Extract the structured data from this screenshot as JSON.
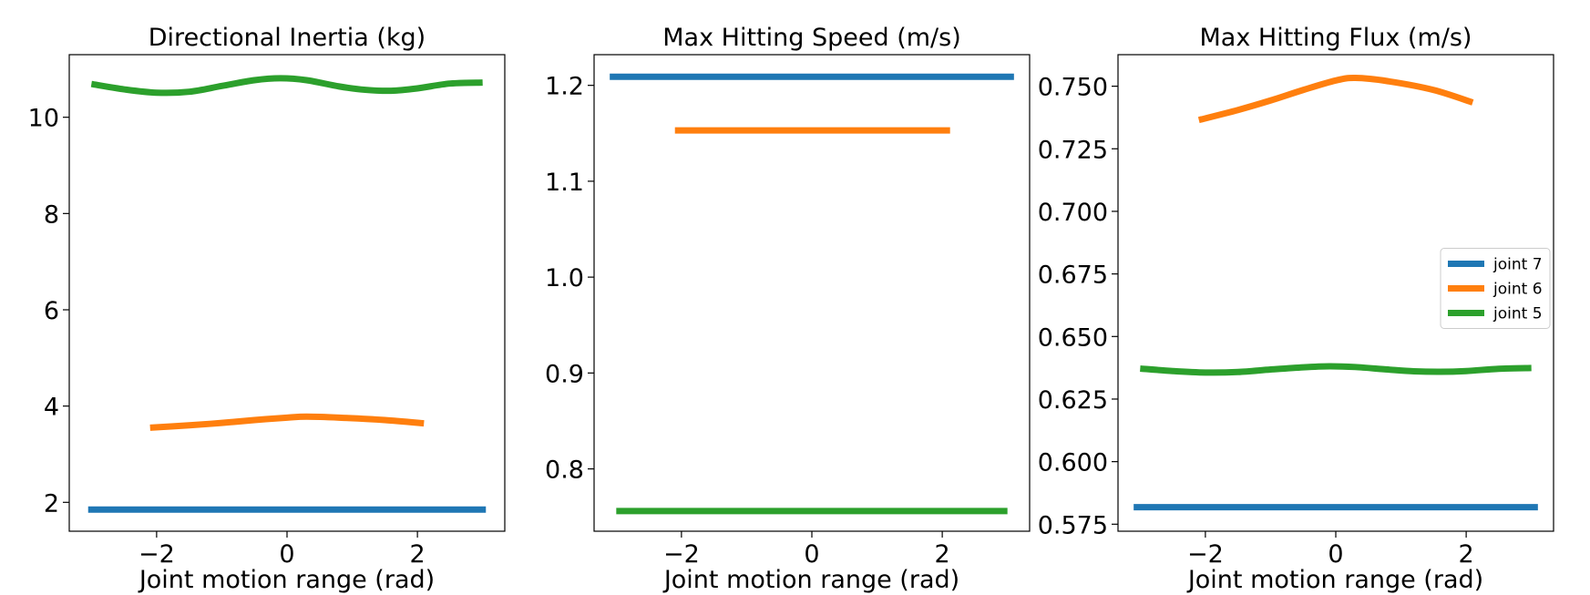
{
  "chart_data": [
    {
      "type": "line",
      "title": "Directional Inertia (kg)",
      "xlabel": "Joint motion range (rad)",
      "ylabel": "",
      "xlim": [
        -3.34,
        3.34
      ],
      "ylim": [
        1.4,
        11.3
      ],
      "xticks": [
        -2,
        0,
        2
      ],
      "xtick_labels": [
        "−2",
        "0",
        "2"
      ],
      "yticks": [
        2,
        4,
        6,
        8,
        10
      ],
      "ytick_labels": [
        "2",
        "4",
        "6",
        "8",
        "10"
      ],
      "series": [
        {
          "name": "joint 7",
          "color": "#1f77b4",
          "x": [
            -3.05,
            3.05
          ],
          "y": [
            1.85,
            1.85
          ]
        },
        {
          "name": "joint 6",
          "color": "#ff7f0e",
          "x": [
            -2.1,
            -1.5,
            -1.0,
            -0.5,
            0.0,
            0.3,
            0.8,
            1.5,
            2.1
          ],
          "y": [
            3.55,
            3.6,
            3.65,
            3.71,
            3.76,
            3.78,
            3.76,
            3.71,
            3.64
          ]
        },
        {
          "name": "joint 5",
          "color": "#2ca02c",
          "x": [
            -3.0,
            -2.5,
            -2.0,
            -1.5,
            -1.0,
            -0.5,
            -0.1,
            0.3,
            0.8,
            1.2,
            1.6,
            2.0,
            2.5,
            3.0
          ],
          "y": [
            10.69,
            10.58,
            10.51,
            10.53,
            10.65,
            10.77,
            10.81,
            10.77,
            10.64,
            10.57,
            10.55,
            10.6,
            10.7,
            10.72
          ]
        }
      ]
    },
    {
      "type": "line",
      "title": "Max Hitting Speed (m/s)",
      "xlabel": "Joint motion range (rad)",
      "ylabel": "",
      "xlim": [
        -3.34,
        3.34
      ],
      "ylim": [
        0.735,
        1.232
      ],
      "xticks": [
        -2,
        0,
        2
      ],
      "xtick_labels": [
        "−2",
        "0",
        "2"
      ],
      "yticks": [
        0.8,
        0.9,
        1.0,
        1.1,
        1.2
      ],
      "ytick_labels": [
        "0.8",
        "0.9",
        "1.0",
        "1.1",
        "1.2"
      ],
      "series": [
        {
          "name": "joint 7",
          "color": "#1f77b4",
          "x": [
            -3.1,
            3.1
          ],
          "y": [
            1.209,
            1.209
          ]
        },
        {
          "name": "joint 6",
          "color": "#ff7f0e",
          "x": [
            -2.1,
            2.12
          ],
          "y": [
            1.153,
            1.153
          ]
        },
        {
          "name": "joint 5",
          "color": "#2ca02c",
          "x": [
            -3.0,
            3.0
          ],
          "y": [
            0.756,
            0.756
          ]
        }
      ]
    },
    {
      "type": "line",
      "title": "Max Hitting Flux (m/s)",
      "xlabel": "Joint motion range (rad)",
      "ylabel": "",
      "xlim": [
        -3.34,
        3.34
      ],
      "ylim": [
        0.5722,
        0.7626
      ],
      "xticks": [
        -2,
        0,
        2
      ],
      "xtick_labels": [
        "−2",
        "0",
        "2"
      ],
      "yticks": [
        0.575,
        0.6,
        0.625,
        0.65,
        0.675,
        0.7,
        0.725,
        0.75
      ],
      "ytick_labels": [
        "0.575",
        "0.600",
        "0.625",
        "0.650",
        "0.675",
        "0.700",
        "0.725",
        "0.750"
      ],
      "legend": {
        "location": "center-right",
        "entries": [
          "joint 7",
          "joint 6",
          "joint 5"
        ]
      },
      "series": [
        {
          "name": "joint 7",
          "color": "#1f77b4",
          "x": [
            -3.1,
            3.1
          ],
          "y": [
            0.5818,
            0.5818
          ]
        },
        {
          "name": "joint 6",
          "color": "#ff7f0e",
          "x": [
            -2.1,
            -1.5,
            -1.0,
            -0.5,
            0.0,
            0.3,
            0.8,
            1.5,
            2.1
          ],
          "y": [
            0.7365,
            0.7405,
            0.7443,
            0.7485,
            0.7523,
            0.7533,
            0.752,
            0.7485,
            0.7435
          ]
        },
        {
          "name": "joint 5",
          "color": "#2ca02c",
          "x": [
            -3.0,
            -2.5,
            -2.0,
            -1.5,
            -1.0,
            -0.5,
            -0.1,
            0.3,
            0.8,
            1.2,
            1.6,
            2.0,
            2.5,
            3.0
          ],
          "y": [
            0.6372,
            0.6362,
            0.6356,
            0.6358,
            0.6368,
            0.6377,
            0.6381,
            0.6378,
            0.6368,
            0.6361,
            0.6359,
            0.6362,
            0.6371,
            0.6374
          ]
        }
      ]
    }
  ]
}
